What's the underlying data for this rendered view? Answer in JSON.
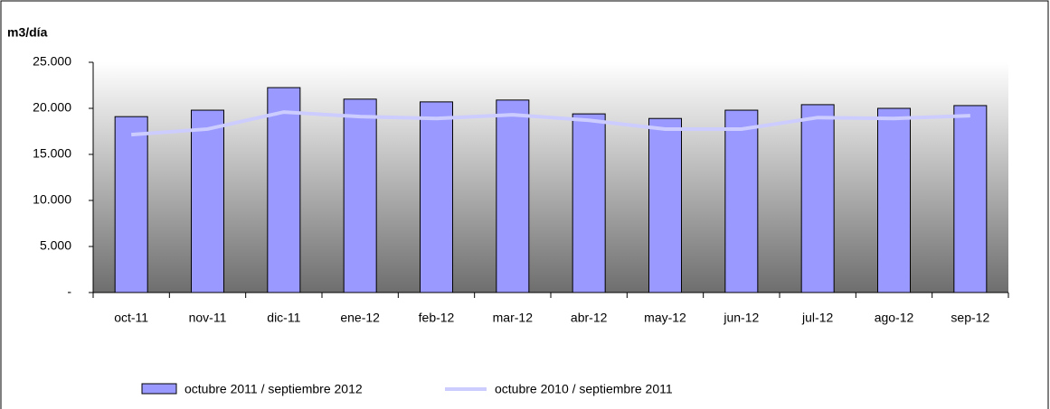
{
  "chart_data": {
    "type": "bar_line",
    "y_label": "m3/día",
    "categories": [
      "oct-11",
      "nov-11",
      "dic-11",
      "ene-12",
      "feb-12",
      "mar-12",
      "abr-12",
      "may-12",
      "jun-12",
      "jul-12",
      "ago-12",
      "sep-12"
    ],
    "series": [
      {
        "name": "octubre 2011 / septiembre 2012",
        "type": "bar",
        "color": "#9999ff",
        "values": [
          19100,
          19800,
          22250,
          21000,
          20700,
          20900,
          19400,
          18900,
          19800,
          20400,
          20000,
          20300
        ]
      },
      {
        "name": "octubre 2010 / septiembre 2011",
        "type": "line",
        "color": "#ccccff",
        "values": [
          17150,
          17750,
          19600,
          19100,
          18900,
          19300,
          18700,
          17750,
          17750,
          19000,
          18900,
          19200
        ]
      }
    ],
    "ylim": [
      0,
      25000
    ],
    "yticks": [
      {
        "value": 0,
        "label": "-"
      },
      {
        "value": 5000,
        "label": "5.000"
      },
      {
        "value": 10000,
        "label": "10.000"
      },
      {
        "value": 15000,
        "label": "15.000"
      },
      {
        "value": 20000,
        "label": "20.000"
      },
      {
        "value": 25000,
        "label": "25.000"
      }
    ],
    "legend": "bottom"
  }
}
